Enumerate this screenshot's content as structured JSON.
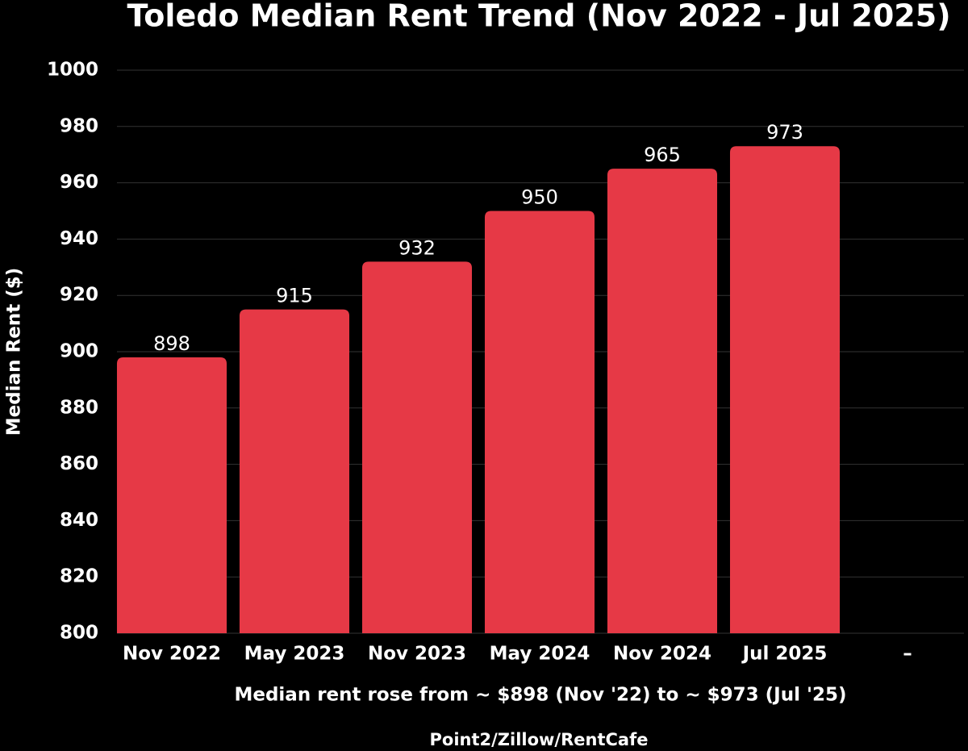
{
  "chart_data": {
    "type": "bar",
    "title": "Toledo Median Rent Trend (Nov 2022 - Jul 2025)",
    "y_label": "Median Rent ($)",
    "annotation": "Median rent rose from ~ $898 (Nov '22) to ~ $973 (Jul '25)",
    "source": "Point2/Zillow/RentCafe",
    "categories": [
      "Nov 2022",
      "May 2023",
      "Nov 2023",
      "May 2024",
      "Nov 2024",
      "Jul 2025",
      "–"
    ],
    "values": [
      898,
      915,
      932,
      950,
      965,
      973,
      null
    ],
    "color": "#e63946",
    "ylim": [
      800,
      1000
    ],
    "yticks": [
      800,
      820,
      840,
      860,
      880,
      900,
      920,
      940,
      960,
      980,
      1000
    ],
    "grid": true
  }
}
